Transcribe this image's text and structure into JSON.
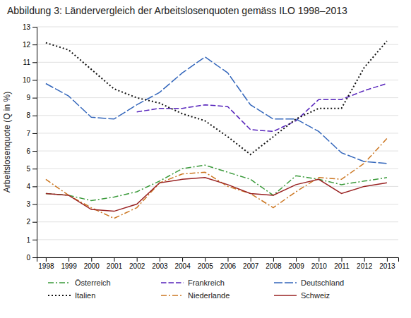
{
  "chart_data": {
    "type": "line",
    "title": "Abbildung 3: Ländervergleich der Arbeitslosenquoten gemäss ILO 1998–2013",
    "y_label": "Arbeitslosenquote (Q in %)",
    "x": [
      1998,
      1999,
      2000,
      2001,
      2002,
      2003,
      2004,
      2005,
      2006,
      2007,
      2008,
      2009,
      2010,
      2011,
      2012,
      2013
    ],
    "series": [
      {
        "name": "Österreich",
        "color": "#3a9a3a",
        "line_style": "dashdot",
        "values": [
          3.6,
          3.5,
          3.2,
          3.4,
          3.7,
          4.3,
          5.0,
          5.2,
          4.8,
          4.4,
          3.5,
          4.6,
          4.4,
          4.1,
          4.3,
          4.5
        ]
      },
      {
        "name": "Frankreich",
        "color": "#5522bb",
        "line_style": "dashed",
        "values": [
          null,
          null,
          null,
          null,
          8.2,
          8.4,
          8.4,
          8.6,
          8.5,
          7.2,
          7.1,
          7.7,
          8.9,
          8.9,
          9.4,
          9.8
        ]
      },
      {
        "name": "Deutschland",
        "color": "#3366bb",
        "line_style": "longdash",
        "values": [
          9.8,
          9.1,
          7.9,
          7.8,
          8.6,
          9.3,
          10.4,
          11.3,
          10.4,
          8.6,
          7.8,
          7.8,
          7.1,
          5.9,
          5.4,
          5.3
        ]
      },
      {
        "name": "Italien",
        "color": "#111111",
        "line_style": "dotted",
        "values": [
          12.1,
          11.7,
          10.6,
          9.5,
          9.0,
          8.7,
          8.1,
          7.7,
          6.8,
          5.8,
          6.8,
          7.8,
          8.4,
          8.4,
          10.7,
          12.2
        ]
      },
      {
        "name": "Niederlande",
        "color": "#cc7722",
        "line_style": "dashdot",
        "values": [
          4.4,
          3.5,
          2.8,
          2.2,
          2.8,
          4.2,
          4.7,
          4.8,
          4.0,
          3.6,
          2.8,
          3.7,
          4.5,
          4.4,
          5.3,
          6.7
        ]
      },
      {
        "name": "Schweiz",
        "color": "#992222",
        "line_style": "solid",
        "values": [
          3.6,
          3.5,
          2.7,
          2.6,
          3.0,
          4.2,
          4.4,
          4.5,
          4.1,
          3.6,
          3.5,
          4.1,
          4.4,
          3.6,
          4.0,
          4.2
        ]
      }
    ],
    "xlim": [
      1997.6,
      2013.5
    ],
    "xticks": [
      1998,
      1999,
      2000,
      2001,
      2002,
      2003,
      2004,
      2005,
      2006,
      2007,
      2008,
      2009,
      2010,
      2011,
      2012,
      2013
    ],
    "ylim": [
      0,
      13
    ],
    "yticks": [
      0,
      1,
      2,
      3,
      4,
      5,
      6,
      7,
      8,
      9,
      10,
      11,
      12,
      13
    ],
    "grid": true,
    "legend": "bottom"
  }
}
